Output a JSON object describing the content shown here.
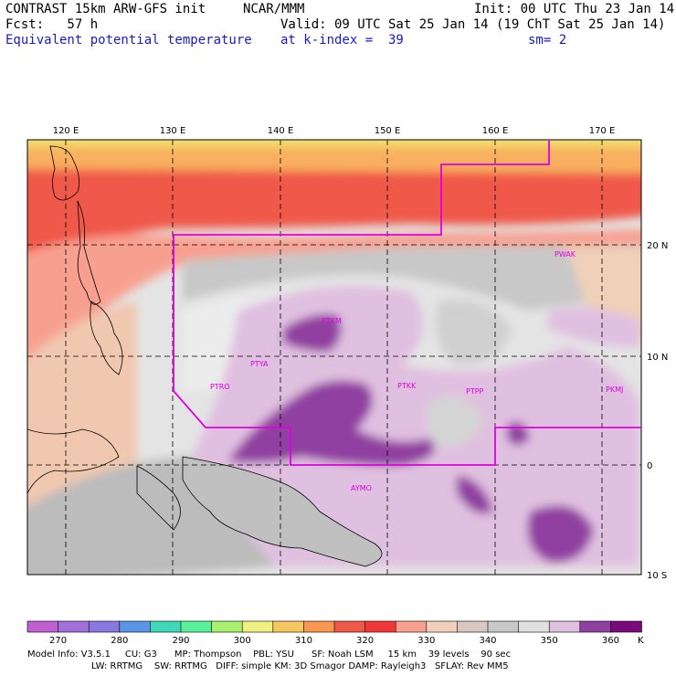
{
  "header": {
    "model": "CONTRAST 15km ARW-GFS init",
    "org": "NCAR/MMM",
    "init": "Init: 00 UTC Thu 23 Jan 14",
    "fcst": "Fcst:   57 h",
    "valid": "Valid: 09 UTC Sat 25 Jan 14 (19 ChT Sat 25 Jan 14)",
    "field": "Equivalent potential temperature",
    "level": "at k-index =  39",
    "smooth": "sm= 2"
  },
  "map": {
    "lon_labels": [
      "120 E",
      "130 E",
      "140 E",
      "150 E",
      "160 E",
      "170 E"
    ],
    "lat_labels": [
      "20 N",
      "10 N",
      "0",
      "10 S"
    ],
    "stations": [
      "PWAK",
      "PTKM",
      "PTYA",
      "PTRO",
      "PTKK",
      "PTPP",
      "PKMJ",
      "AYMO"
    ]
  },
  "colorbar": {
    "ticks": [
      "270",
      "280",
      "290",
      "300",
      "310",
      "320",
      "330",
      "340",
      "350",
      "360"
    ],
    "unit": "K",
    "colors": [
      "#c060d0",
      "#a070d8",
      "#8878e0",
      "#5a96e8",
      "#40d8b8",
      "#58f098",
      "#a8f070",
      "#f0f080",
      "#f8c860",
      "#f89850",
      "#f05848",
      "#f03838",
      "#f8a090",
      "#f0d0b8",
      "#d8c8c0",
      "#c8c8c8",
      "#e0e0e0",
      "#e0c0e0",
      "#9040a0",
      "#7a0a7a"
    ]
  },
  "info": {
    "line1": "Model Info: V3.5.1     CU: G3      MP: Thompson    PBL: YSU      SF: Noah LSM     15 km    39 levels    90 sec",
    "line2": "LW: RRTMG    SW: RRTMG   DIFF: simple KM: 3D Smagor DAMP: Rayleigh3   SFLAY: Rev MM5"
  }
}
